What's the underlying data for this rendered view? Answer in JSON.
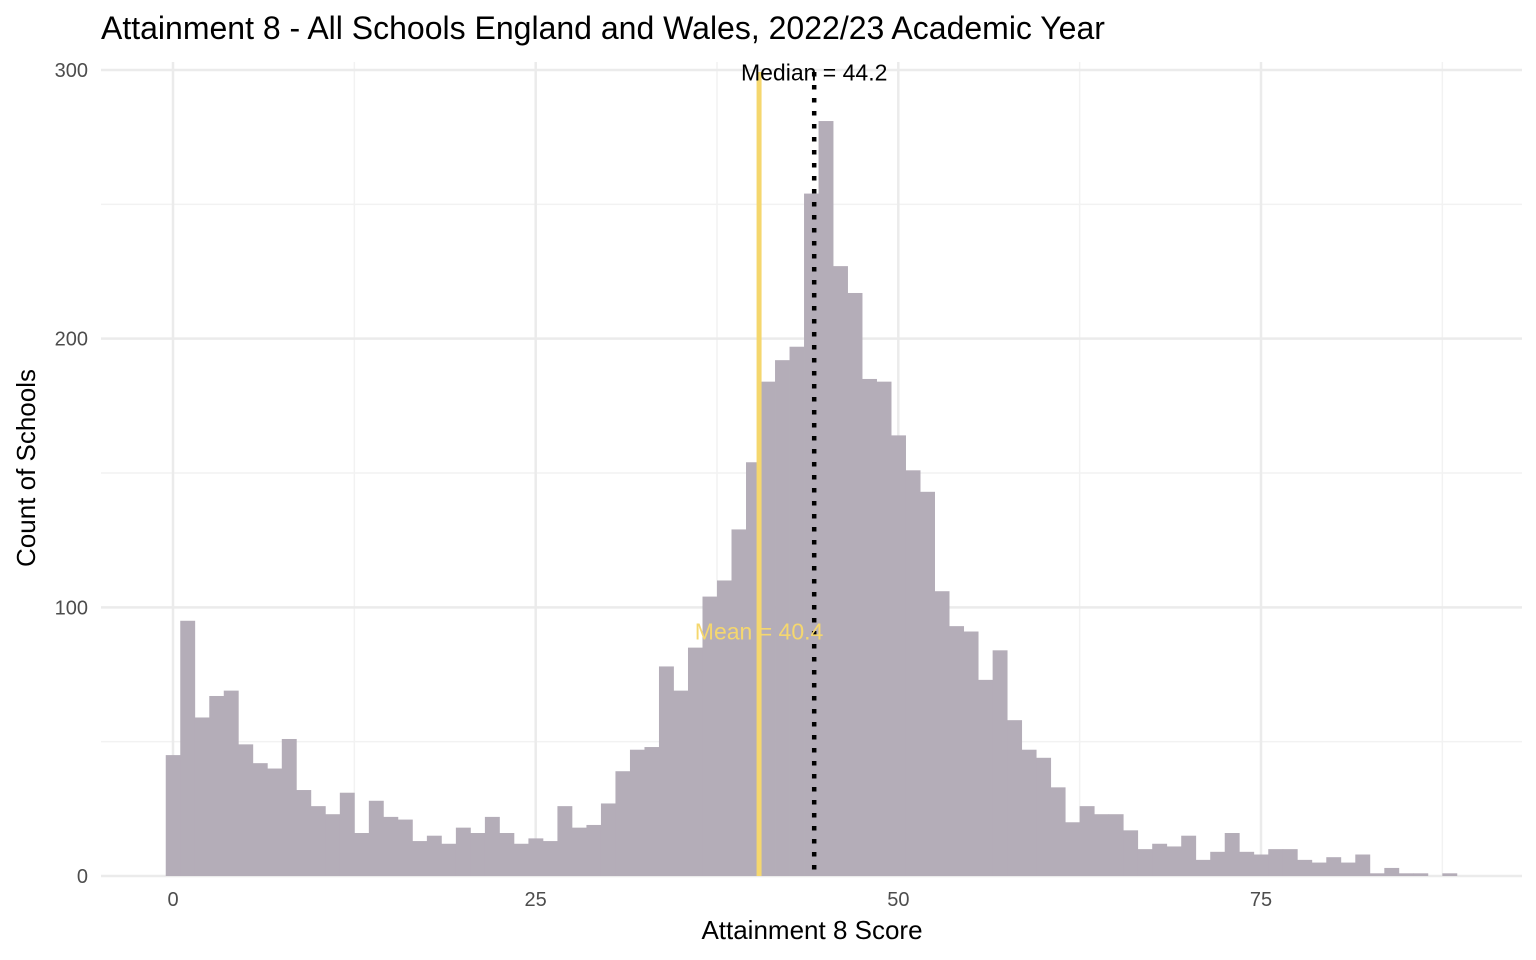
{
  "chart_data": {
    "type": "bar",
    "subtype": "histogram",
    "title": "Attainment 8 - All Schools England and Wales, 2022/23 Academic Year",
    "xlabel": "Attainment 8 Score",
    "ylabel": "Count of Schools",
    "xlim": [
      -5,
      93
    ],
    "ylim": [
      0,
      300
    ],
    "x_ticks": [
      0,
      25,
      50,
      75
    ],
    "x_tick_labels": [
      "0",
      "25",
      "50",
      "75"
    ],
    "y_ticks": [
      0,
      100,
      200,
      300
    ],
    "y_tick_labels": [
      "0",
      "100",
      "200",
      "300"
    ],
    "grid": true,
    "bin_width": 1,
    "bin_start": -0.5,
    "counts": [
      45,
      95,
      59,
      67,
      69,
      49,
      42,
      40,
      51,
      32,
      26,
      23,
      31,
      16,
      28,
      22,
      21,
      13,
      15,
      12,
      18,
      16,
      22,
      16,
      12,
      14,
      13,
      26,
      18,
      19,
      27,
      39,
      47,
      48,
      78,
      69,
      85,
      104,
      110,
      129,
      154,
      184,
      192,
      197,
      254,
      281,
      227,
      217,
      185,
      184,
      164,
      151,
      143,
      106,
      93,
      91,
      73,
      84,
      58,
      47,
      44,
      33,
      20,
      26,
      23,
      23,
      17,
      10,
      12,
      11,
      15,
      6,
      9,
      16,
      9,
      8,
      10,
      10,
      6,
      5,
      7,
      5,
      8,
      1,
      3,
      1,
      1,
      0,
      1
    ],
    "bar_color": "#b4adb8",
    "annotations": [
      {
        "type": "vline",
        "x": 40.4,
        "color": "#f5d76e",
        "style": "solid",
        "label": "Mean = 40.4",
        "label_y": 91
      },
      {
        "type": "vline",
        "x": 44.2,
        "color": "#000000",
        "style": "dotted",
        "label": "Median = 44.2",
        "label_y": 299
      }
    ]
  },
  "labels": {
    "mean": "Mean = 40.4",
    "median": "Median = 44.2"
  }
}
